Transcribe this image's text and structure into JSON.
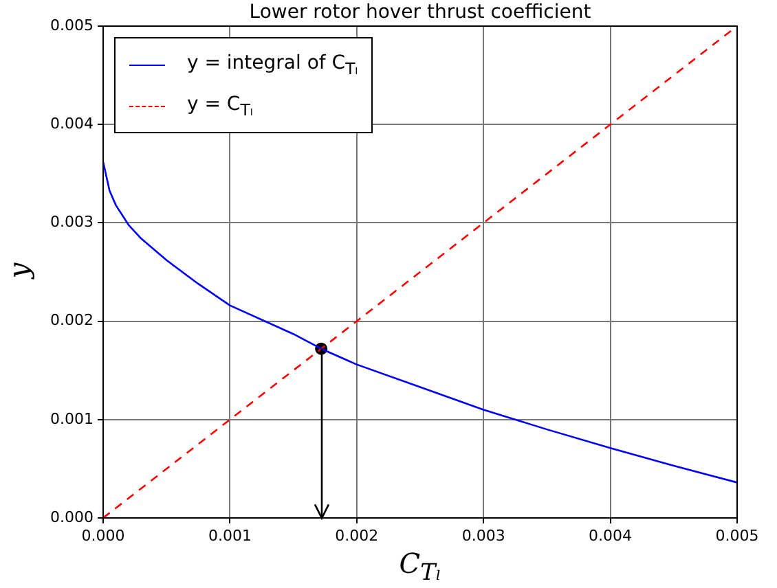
{
  "chart_data": {
    "type": "line",
    "title": "Lower rotor hover thrust coefficient",
    "xlabel": "C$_{Tₗ}$",
    "ylabel": "y",
    "xlim": [
      0,
      0.005
    ],
    "ylim": [
      0,
      0.005
    ],
    "xticks": [
      {
        "value": 0,
        "label": "0.000"
      },
      {
        "value": 0.001,
        "label": "0.001"
      },
      {
        "value": 0.002,
        "label": "0.002"
      },
      {
        "value": 0.003,
        "label": "0.003"
      },
      {
        "value": 0.004,
        "label": "0.004"
      },
      {
        "value": 0.005,
        "label": "0.005"
      }
    ],
    "yticks": [
      {
        "value": 0,
        "label": "0.000"
      },
      {
        "value": 0.001,
        "label": "0.001"
      },
      {
        "value": 0.002,
        "label": "0.002"
      },
      {
        "value": 0.003,
        "label": "0.003"
      },
      {
        "value": 0.004,
        "label": "0.004"
      },
      {
        "value": 0.005,
        "label": "0.005"
      }
    ],
    "grid": true,
    "legend": "top left",
    "marker": "none",
    "series": [
      {
        "name": "y = integral of C$_{Tₗ}$",
        "color": "#0000ff",
        "line_style": "solid",
        "x": [
          0,
          5e-05,
          0.0001,
          0.0002,
          0.0003,
          0.0005,
          0.00075,
          0.001,
          0.0015,
          0.00172,
          0.002,
          0.0025,
          0.003,
          0.0035,
          0.004,
          0.0045,
          0.005
        ],
        "values": [
          0.00362,
          0.00333,
          0.00318,
          0.00298,
          0.00284,
          0.00262,
          0.00238,
          0.00216,
          0.00187,
          0.00172,
          0.00156,
          0.00133,
          0.0011,
          0.0009,
          0.00071,
          0.00053,
          0.00036
        ]
      },
      {
        "name": "y = C$_{Tₗ}$",
        "color": "#ff0000",
        "line_style": "dashed",
        "x": [
          0,
          0.005
        ],
        "values": [
          0,
          0.005
        ]
      },
      {
        "type": "scatter",
        "color": "#000000",
        "marker": "circle",
        "x": [
          0.00172
        ],
        "values": [
          0.00172
        ]
      }
    ]
  }
}
